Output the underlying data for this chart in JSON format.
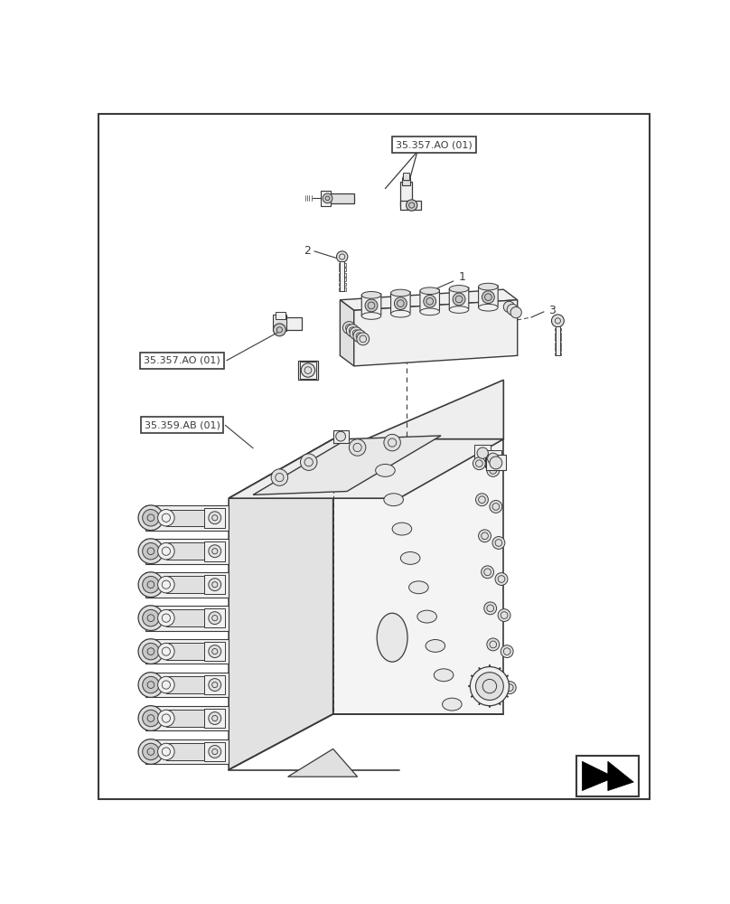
{
  "bg_color": "#ffffff",
  "line_color": "#3a3a3a",
  "fill_light": "#f0f0f0",
  "fill_mid": "#e0e0e0",
  "fill_dark": "#c8c8c8",
  "labels": {
    "top_ref": "35.357.AO (01)",
    "left_ref": "35.357.AO (01)",
    "bottom_ref": "35.359.AB (01)",
    "n1": "1",
    "n2": "2",
    "n3": "3"
  }
}
